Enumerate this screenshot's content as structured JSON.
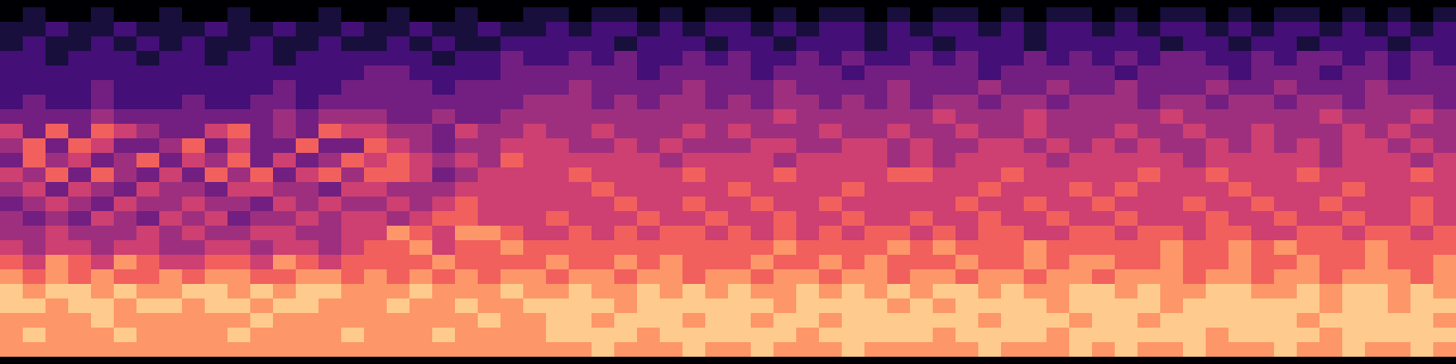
{
  "chart_data": {
    "type": "heatmap",
    "color": "magma",
    "tick_labels": false,
    "color_range": [
      0,
      9
    ],
    "cells": [
      [
        0,
        1,
        0,
        0,
        1,
        0,
        0,
        1,
        0,
        0,
        1,
        0,
        0,
        0,
        1,
        0,
        0,
        1,
        0,
        0,
        1,
        0,
        0,
        1,
        1,
        0,
        1,
        1,
        0,
        1,
        0,
        1,
        1,
        0,
        1,
        0,
        1,
        1,
        0,
        1,
        0,
        1,
        1,
        0,
        1,
        0,
        1,
        1,
        0,
        1,
        0,
        1,
        1,
        0,
        1,
        0,
        1,
        1,
        0,
        1,
        0,
        1,
        0,
        1
      ],
      [
        1,
        1,
        2,
        1,
        1,
        2,
        1,
        1,
        1,
        2,
        1,
        1,
        2,
        1,
        1,
        2,
        1,
        1,
        2,
        1,
        1,
        2,
        1,
        1,
        2,
        1,
        2,
        2,
        1,
        2,
        1,
        2,
        2,
        1,
        2,
        1,
        2,
        2,
        1,
        2,
        1,
        2,
        2,
        1,
        2,
        1,
        2,
        2,
        1,
        2,
        1,
        2,
        2,
        1,
        2,
        1,
        2,
        2,
        1,
        2,
        1,
        2,
        1,
        2
      ],
      [
        1,
        2,
        1,
        1,
        2,
        1,
        2,
        1,
        2,
        1,
        1,
        2,
        1,
        1,
        2,
        1,
        1,
        2,
        1,
        2,
        1,
        1,
        2,
        2,
        2,
        2,
        2,
        1,
        2,
        2,
        2,
        1,
        2,
        2,
        1,
        2,
        2,
        2,
        1,
        2,
        2,
        1,
        2,
        2,
        2,
        1,
        2,
        2,
        2,
        2,
        2,
        1,
        2,
        2,
        1,
        2,
        2,
        1,
        2,
        2,
        2,
        1,
        2,
        2
      ],
      [
        2,
        2,
        1,
        2,
        2,
        2,
        1,
        2,
        2,
        1,
        2,
        2,
        1,
        2,
        2,
        2,
        2,
        2,
        2,
        1,
        2,
        2,
        3,
        2,
        2,
        3,
        2,
        3,
        2,
        2,
        3,
        2,
        3,
        2,
        2,
        3,
        2,
        3,
        2,
        2,
        3,
        2,
        3,
        2,
        2,
        3,
        2,
        3,
        2,
        3,
        2,
        3,
        3,
        2,
        2,
        3,
        2,
        3,
        3,
        2,
        3,
        2,
        3,
        2
      ],
      [
        2,
        2,
        2,
        2,
        2,
        2,
        2,
        2,
        2,
        2,
        2,
        2,
        2,
        2,
        2,
        2,
        3,
        3,
        2,
        2,
        2,
        2,
        3,
        3,
        3,
        3,
        3,
        3,
        2,
        3,
        3,
        3,
        3,
        2,
        3,
        3,
        3,
        2,
        3,
        3,
        3,
        3,
        3,
        2,
        3,
        3,
        3,
        3,
        3,
        2,
        3,
        3,
        3,
        3,
        2,
        3,
        3,
        3,
        2,
        3,
        3,
        2,
        3,
        3
      ],
      [
        2,
        2,
        2,
        2,
        3,
        2,
        2,
        2,
        2,
        2,
        2,
        2,
        3,
        2,
        2,
        3,
        3,
        3,
        3,
        2,
        3,
        3,
        3,
        3,
        3,
        4,
        3,
        3,
        3,
        3,
        4,
        3,
        3,
        3,
        4,
        3,
        3,
        3,
        3,
        4,
        3,
        3,
        3,
        4,
        3,
        3,
        4,
        3,
        3,
        4,
        3,
        3,
        3,
        4,
        3,
        3,
        4,
        3,
        3,
        3,
        4,
        3,
        3,
        3
      ],
      [
        2,
        3,
        2,
        2,
        3,
        2,
        2,
        2,
        3,
        2,
        2,
        3,
        3,
        2,
        3,
        3,
        3,
        3,
        3,
        3,
        3,
        3,
        3,
        4,
        4,
        4,
        3,
        4,
        3,
        4,
        4,
        3,
        4,
        3,
        4,
        4,
        3,
        4,
        3,
        4,
        3,
        4,
        4,
        3,
        4,
        4,
        3,
        4,
        4,
        4,
        3,
        4,
        4,
        3,
        4,
        4,
        3,
        4,
        4,
        3,
        4,
        4,
        4,
        3
      ],
      [
        3,
        3,
        3,
        3,
        4,
        3,
        3,
        3,
        3,
        3,
        3,
        3,
        4,
        3,
        4,
        4,
        4,
        3,
        3,
        4,
        3,
        3,
        4,
        4,
        4,
        4,
        4,
        4,
        4,
        4,
        4,
        4,
        4,
        4,
        5,
        4,
        4,
        4,
        4,
        4,
        4,
        5,
        4,
        4,
        4,
        5,
        4,
        4,
        4,
        4,
        4,
        5,
        4,
        4,
        4,
        4,
        4,
        4,
        5,
        4,
        4,
        4,
        5,
        4
      ],
      [
        5,
        3,
        6,
        3,
        6,
        5,
        4,
        3,
        3,
        5,
        6,
        3,
        4,
        3,
        6,
        5,
        5,
        4,
        4,
        3,
        5,
        4,
        4,
        5,
        4,
        4,
        5,
        4,
        4,
        4,
        5,
        4,
        5,
        4,
        4,
        4,
        5,
        4,
        4,
        5,
        4,
        4,
        5,
        4,
        4,
        5,
        4,
        4,
        4,
        5,
        4,
        4,
        5,
        4,
        4,
        5,
        4,
        4,
        4,
        5,
        4,
        5,
        4,
        4
      ],
      [
        4,
        6,
        3,
        6,
        5,
        3,
        3,
        4,
        6,
        3,
        5,
        3,
        3,
        6,
        3,
        3,
        6,
        5,
        4,
        3,
        4,
        4,
        5,
        5,
        5,
        4,
        4,
        5,
        4,
        5,
        4,
        4,
        4,
        5,
        5,
        4,
        4,
        5,
        5,
        4,
        5,
        4,
        4,
        5,
        5,
        4,
        5,
        4,
        5,
        4,
        5,
        4,
        4,
        5,
        4,
        5,
        4,
        5,
        4,
        5,
        5,
        4,
        5,
        4
      ],
      [
        3,
        6,
        4,
        5,
        3,
        4,
        6,
        3,
        5,
        4,
        6,
        3,
        5,
        3,
        4,
        6,
        5,
        6,
        5,
        4,
        5,
        4,
        6,
        5,
        5,
        5,
        5,
        5,
        5,
        4,
        5,
        5,
        5,
        5,
        4,
        5,
        5,
        5,
        5,
        4,
        5,
        4,
        5,
        5,
        5,
        5,
        4,
        5,
        5,
        5,
        5,
        5,
        4,
        5,
        5,
        5,
        5,
        5,
        4,
        5,
        5,
        5,
        4,
        5
      ],
      [
        5,
        4,
        6,
        3,
        6,
        4,
        3,
        5,
        3,
        6,
        4,
        6,
        3,
        5,
        6,
        4,
        6,
        6,
        5,
        3,
        4,
        5,
        5,
        5,
        5,
        6,
        5,
        5,
        5,
        5,
        6,
        5,
        5,
        5,
        6,
        5,
        5,
        5,
        5,
        6,
        6,
        5,
        5,
        5,
        6,
        5,
        5,
        5,
        5,
        5,
        6,
        5,
        5,
        6,
        5,
        5,
        5,
        6,
        5,
        5,
        5,
        5,
        6,
        5
      ],
      [
        4,
        5,
        3,
        5,
        4,
        3,
        5,
        4,
        4,
        3,
        5,
        5,
        4,
        4,
        3,
        5,
        5,
        4,
        4,
        4,
        5,
        5,
        5,
        5,
        5,
        5,
        6,
        5,
        5,
        5,
        5,
        5,
        6,
        5,
        5,
        5,
        5,
        6,
        5,
        5,
        5,
        5,
        5,
        6,
        5,
        5,
        5,
        6,
        5,
        6,
        5,
        5,
        5,
        5,
        6,
        5,
        5,
        5,
        5,
        6,
        5,
        5,
        5,
        5
      ],
      [
        3,
        4,
        5,
        4,
        3,
        5,
        4,
        4,
        5,
        4,
        4,
        3,
        5,
        4,
        5,
        4,
        4,
        5,
        4,
        5,
        6,
        5,
        5,
        5,
        5,
        5,
        5,
        6,
        5,
        5,
        6,
        5,
        5,
        6,
        5,
        5,
        6,
        5,
        5,
        5,
        5,
        5,
        6,
        5,
        5,
        6,
        5,
        5,
        6,
        5,
        5,
        5,
        6,
        5,
        5,
        6,
        5,
        5,
        6,
        5,
        5,
        5,
        6,
        5
      ],
      [
        4,
        3,
        4,
        3,
        5,
        4,
        3,
        5,
        4,
        5,
        3,
        4,
        4,
        5,
        4,
        5,
        5,
        4,
        5,
        6,
        6,
        5,
        5,
        5,
        6,
        5,
        5,
        5,
        6,
        5,
        5,
        6,
        5,
        5,
        6,
        5,
        5,
        6,
        5,
        5,
        6,
        5,
        5,
        6,
        5,
        5,
        6,
        5,
        5,
        6,
        5,
        5,
        5,
        6,
        5,
        5,
        6,
        5,
        5,
        6,
        5,
        5,
        6,
        5
      ],
      [
        4,
        4,
        5,
        4,
        4,
        4,
        5,
        4,
        5,
        4,
        4,
        5,
        5,
        4,
        4,
        5,
        5,
        7,
        6,
        5,
        7,
        7,
        6,
        5,
        5,
        6,
        5,
        6,
        5,
        6,
        6,
        5,
        6,
        5,
        6,
        5,
        6,
        5,
        6,
        6,
        5,
        6,
        5,
        6,
        6,
        5,
        5,
        6,
        6,
        5,
        6,
        6,
        5,
        6,
        6,
        5,
        5,
        6,
        6,
        5,
        6,
        6,
        5,
        6
      ],
      [
        5,
        4,
        5,
        5,
        4,
        5,
        5,
        4,
        4,
        5,
        5,
        4,
        5,
        5,
        4,
        5,
        6,
        6,
        7,
        5,
        6,
        6,
        7,
        6,
        6,
        6,
        6,
        6,
        6,
        6,
        6,
        6,
        6,
        6,
        7,
        6,
        6,
        6,
        6,
        7,
        6,
        7,
        6,
        6,
        6,
        7,
        6,
        6,
        6,
        6,
        6,
        7,
        6,
        6,
        7,
        6,
        7,
        6,
        6,
        6,
        7,
        6,
        6,
        6
      ],
      [
        6,
        5,
        7,
        6,
        5,
        7,
        6,
        5,
        5,
        6,
        6,
        5,
        7,
        6,
        5,
        6,
        6,
        6,
        6,
        7,
        6,
        6,
        6,
        6,
        7,
        6,
        6,
        7,
        6,
        7,
        6,
        6,
        6,
        7,
        6,
        6,
        7,
        6,
        7,
        6,
        6,
        6,
        7,
        6,
        6,
        7,
        6,
        7,
        7,
        6,
        6,
        7,
        6,
        6,
        7,
        6,
        6,
        7,
        6,
        6,
        7,
        6,
        6,
        7
      ],
      [
        7,
        6,
        7,
        6,
        7,
        6,
        6,
        7,
        6,
        7,
        7,
        6,
        6,
        7,
        7,
        6,
        7,
        6,
        7,
        6,
        7,
        6,
        7,
        7,
        6,
        7,
        7,
        6,
        7,
        7,
        6,
        7,
        7,
        6,
        7,
        7,
        6,
        7,
        7,
        6,
        7,
        7,
        6,
        7,
        7,
        6,
        7,
        7,
        6,
        7,
        7,
        7,
        6,
        7,
        7,
        6,
        7,
        7,
        6,
        7,
        7,
        7,
        6,
        7
      ],
      [
        8,
        7,
        8,
        8,
        7,
        8,
        7,
        7,
        8,
        8,
        7,
        8,
        7,
        8,
        8,
        7,
        7,
        7,
        8,
        7,
        7,
        7,
        8,
        7,
        7,
        8,
        7,
        7,
        8,
        7,
        8,
        7,
        8,
        7,
        7,
        8,
        7,
        8,
        7,
        8,
        7,
        8,
        8,
        7,
        8,
        7,
        7,
        8,
        8,
        7,
        8,
        7,
        7,
        8,
        8,
        7,
        7,
        8,
        7,
        8,
        8,
        7,
        8,
        7
      ],
      [
        8,
        8,
        7,
        8,
        8,
        7,
        8,
        8,
        7,
        8,
        8,
        7,
        8,
        8,
        7,
        7,
        7,
        8,
        7,
        7,
        8,
        7,
        7,
        8,
        8,
        8,
        8,
        7,
        8,
        8,
        8,
        8,
        8,
        8,
        7,
        8,
        8,
        8,
        8,
        7,
        8,
        7,
        8,
        8,
        8,
        8,
        7,
        8,
        8,
        8,
        8,
        7,
        8,
        8,
        8,
        8,
        8,
        8,
        7,
        8,
        8,
        7,
        8,
        8
      ],
      [
        7,
        7,
        7,
        7,
        8,
        7,
        7,
        7,
        7,
        7,
        7,
        8,
        7,
        7,
        7,
        7,
        7,
        7,
        7,
        7,
        7,
        8,
        7,
        7,
        8,
        8,
        7,
        8,
        8,
        8,
        7,
        8,
        8,
        7,
        8,
        8,
        7,
        8,
        8,
        8,
        8,
        8,
        8,
        7,
        8,
        8,
        8,
        7,
        8,
        8,
        7,
        8,
        8,
        8,
        8,
        8,
        8,
        7,
        8,
        8,
        8,
        8,
        8,
        7
      ],
      [
        7,
        8,
        7,
        7,
        7,
        8,
        7,
        7,
        7,
        7,
        8,
        7,
        7,
        7,
        7,
        8,
        7,
        7,
        7,
        8,
        7,
        7,
        7,
        7,
        8,
        8,
        8,
        8,
        7,
        8,
        8,
        8,
        8,
        8,
        8,
        7,
        8,
        8,
        8,
        8,
        8,
        7,
        8,
        8,
        8,
        8,
        7,
        8,
        8,
        8,
        8,
        8,
        8,
        7,
        8,
        8,
        8,
        8,
        7,
        8,
        8,
        8,
        8,
        8
      ],
      [
        7,
        7,
        7,
        7,
        7,
        7,
        7,
        7,
        7,
        7,
        7,
        7,
        7,
        7,
        7,
        7,
        7,
        7,
        7,
        7,
        7,
        7,
        7,
        7,
        7,
        7,
        8,
        7,
        7,
        7,
        8,
        7,
        7,
        8,
        7,
        7,
        7,
        8,
        7,
        7,
        7,
        7,
        7,
        8,
        7,
        7,
        7,
        8,
        7,
        8,
        7,
        7,
        8,
        7,
        7,
        7,
        8,
        7,
        7,
        8,
        7,
        7,
        8,
        7
      ]
    ]
  }
}
